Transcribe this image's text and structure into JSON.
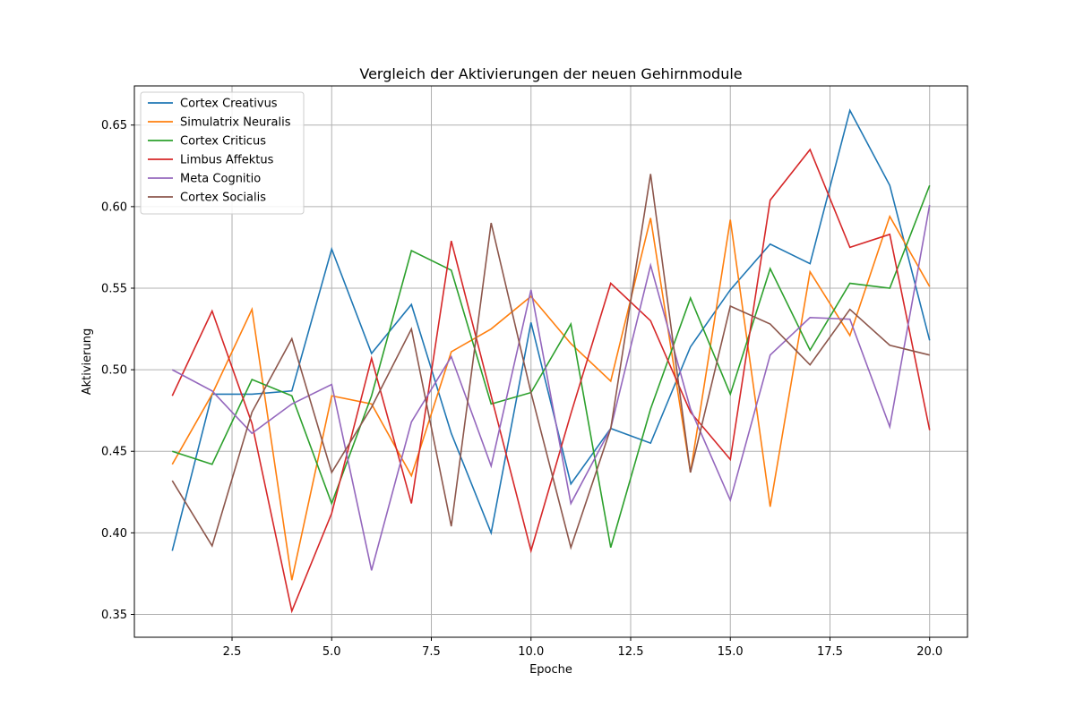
{
  "chart_data": {
    "type": "line",
    "title": "Vergleich der Aktivierungen der neuen Gehirnmodule",
    "xlabel": "Epoche",
    "ylabel": "Aktivierung",
    "xlim": [
      0.05,
      20.95
    ],
    "ylim": [
      0.336,
      0.674
    ],
    "xticks": [
      2.5,
      5.0,
      7.5,
      10.0,
      12.5,
      15.0,
      17.5,
      20.0
    ],
    "xtick_labels": [
      "2.5",
      "5.0",
      "7.5",
      "10.0",
      "12.5",
      "15.0",
      "17.5",
      "20.0"
    ],
    "yticks": [
      0.35,
      0.4,
      0.45,
      0.5,
      0.55,
      0.6,
      0.65
    ],
    "ytick_labels": [
      "0.35",
      "0.40",
      "0.45",
      "0.50",
      "0.55",
      "0.60",
      "0.65"
    ],
    "grid": true,
    "legend_position": "top-left",
    "x": [
      1,
      2,
      3,
      4,
      5,
      6,
      7,
      8,
      9,
      10,
      11,
      12,
      13,
      14,
      15,
      16,
      17,
      18,
      19,
      20
    ],
    "series": [
      {
        "name": "Cortex Creativus",
        "color": "#1f77b4",
        "values": [
          0.389,
          0.485,
          0.485,
          0.487,
          0.574,
          0.51,
          0.54,
          0.461,
          0.4,
          0.529,
          0.43,
          0.464,
          0.455,
          0.514,
          0.549,
          0.577,
          0.565,
          0.659,
          0.613,
          0.518
        ]
      },
      {
        "name": "Simulatrix Neuralis",
        "color": "#ff7f0e",
        "values": [
          0.442,
          0.485,
          0.537,
          0.371,
          0.484,
          0.479,
          0.435,
          0.511,
          0.525,
          0.545,
          0.516,
          0.493,
          0.593,
          0.437,
          0.592,
          0.416,
          0.56,
          0.521,
          0.594,
          0.551
        ]
      },
      {
        "name": "Cortex Criticus",
        "color": "#2ca02c",
        "values": [
          0.45,
          0.442,
          0.494,
          0.484,
          0.418,
          0.484,
          0.573,
          0.561,
          0.479,
          0.486,
          0.528,
          0.391,
          0.476,
          0.544,
          0.485,
          0.562,
          0.512,
          0.553,
          0.55,
          0.613
        ]
      },
      {
        "name": "Limbus Affektus",
        "color": "#d62728",
        "values": [
          0.484,
          0.536,
          0.467,
          0.352,
          0.412,
          0.507,
          0.418,
          0.579,
          0.484,
          0.389,
          0.473,
          0.553,
          0.53,
          0.474,
          0.445,
          0.604,
          0.635,
          0.575,
          0.583,
          0.463
        ]
      },
      {
        "name": "Meta Cognitio",
        "color": "#9467bd",
        "values": [
          0.5,
          0.487,
          0.461,
          0.479,
          0.491,
          0.377,
          0.468,
          0.508,
          0.441,
          0.549,
          0.418,
          0.464,
          0.564,
          0.476,
          0.42,
          0.509,
          0.532,
          0.531,
          0.465,
          0.601
        ]
      },
      {
        "name": "Cortex Socialis",
        "color": "#8c564b",
        "values": [
          0.432,
          0.392,
          0.474,
          0.519,
          0.437,
          0.477,
          0.525,
          0.404,
          0.59,
          0.486,
          0.391,
          0.464,
          0.62,
          0.437,
          0.539,
          0.528,
          0.503,
          0.537,
          0.515,
          0.509
        ]
      }
    ]
  }
}
